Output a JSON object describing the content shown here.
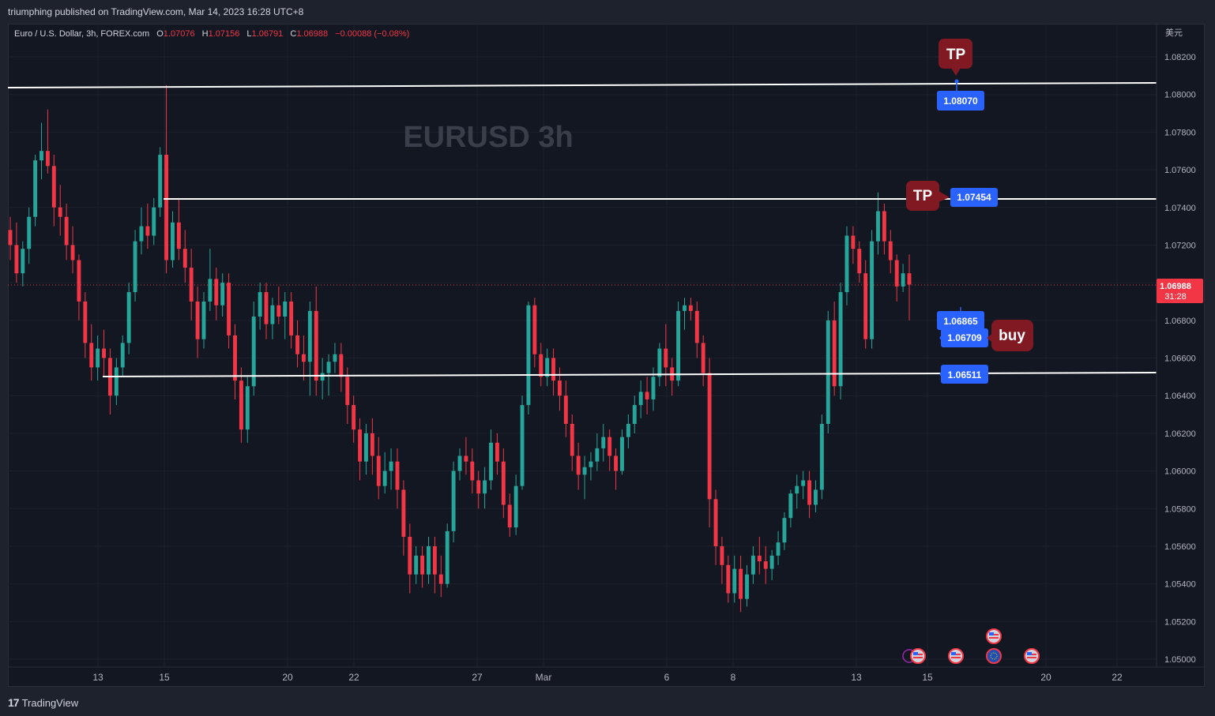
{
  "header": {
    "published": "triumphing published on TradingView.com, Mar 14, 2023 16:28 UTC+8"
  },
  "legend": {
    "symbol": "Euro / U.S. Dollar, 3h, FOREX.com",
    "o_label": "O",
    "o_value": "1.07076",
    "h_label": "H",
    "h_value": "1.07156",
    "l_label": "L",
    "l_value": "1.06791",
    "c_label": "C",
    "c_value": "1.06988",
    "change": "−0.00088 (−0.08%)"
  },
  "watermark": "EURUSD  3h",
  "currency": "美元",
  "footer": {
    "brand": "TradingView"
  },
  "colors": {
    "up": "#26a69a",
    "down": "#f23645",
    "background": "#131722",
    "grid": "#1f2330",
    "label": "#2962ff",
    "tag": "#801922"
  },
  "chart_data": {
    "type": "candlestick",
    "symbol": "EURUSD",
    "timeframe": "3h",
    "ylim": [
      1.0492,
      1.0835
    ],
    "y_ticks": [
      "1.08200",
      "1.08000",
      "1.07800",
      "1.07600",
      "1.07400",
      "1.07200",
      "1.07000",
      "1.06800",
      "1.06600",
      "1.06400",
      "1.06200",
      "1.06000",
      "1.05800",
      "1.05600",
      "1.05400",
      "1.05200",
      "1.05000"
    ],
    "x_ticks": [
      "13",
      "15",
      "20",
      "22",
      "27",
      "Mar",
      "6",
      "8",
      "13",
      "15",
      "20",
      "22"
    ],
    "last_price": {
      "value": "1.06988",
      "countdown": "31:28"
    },
    "levels": [
      {
        "name": "top-resistance",
        "label": "1.08070",
        "tag": "TP"
      },
      {
        "name": "mid-resistance",
        "label": "1.07454",
        "tag": "TP"
      },
      {
        "name": "entry-1",
        "label": "1.06865",
        "tag": "buy"
      },
      {
        "name": "entry-2",
        "label": "1.06709"
      },
      {
        "name": "support",
        "label": "1.06511"
      }
    ],
    "candles": [
      [
        1.0728,
        1.0735,
        1.0712,
        1.072
      ],
      [
        1.072,
        1.0732,
        1.07,
        1.0705
      ],
      [
        1.0705,
        1.0722,
        1.0698,
        1.0718
      ],
      [
        1.0718,
        1.074,
        1.071,
        1.0735
      ],
      [
        1.0735,
        1.0768,
        1.073,
        1.0765
      ],
      [
        1.0765,
        1.0785,
        1.0755,
        1.077
      ],
      [
        1.077,
        1.0792,
        1.0758,
        1.0762
      ],
      [
        1.0762,
        1.0768,
        1.073,
        1.074
      ],
      [
        1.074,
        1.0752,
        1.0725,
        1.0735
      ],
      [
        1.0735,
        1.0742,
        1.0712,
        1.072
      ],
      [
        1.072,
        1.073,
        1.0705,
        1.0712
      ],
      [
        1.0712,
        1.0715,
        1.068,
        1.069
      ],
      [
        1.069,
        1.0695,
        1.066,
        1.0668
      ],
      [
        1.0668,
        1.0678,
        1.0648,
        1.0655
      ],
      [
        1.0655,
        1.0672,
        1.0648,
        1.0665
      ],
      [
        1.0665,
        1.0675,
        1.065,
        1.066
      ],
      [
        1.066,
        1.0665,
        1.063,
        1.064
      ],
      [
        1.064,
        1.066,
        1.0635,
        1.0655
      ],
      [
        1.0655,
        1.0672,
        1.065,
        1.0668
      ],
      [
        1.0668,
        1.07,
        1.0662,
        1.0695
      ],
      [
        1.0695,
        1.0728,
        1.069,
        1.0722
      ],
      [
        1.0722,
        1.074,
        1.0715,
        1.073
      ],
      [
        1.073,
        1.0742,
        1.0718,
        1.0725
      ],
      [
        1.0725,
        1.0745,
        1.072,
        1.074
      ],
      [
        1.074,
        1.0772,
        1.0735,
        1.0768
      ],
      [
        1.0768,
        1.0805,
        1.0705,
        1.0712
      ],
      [
        1.0712,
        1.0738,
        1.0708,
        1.0732
      ],
      [
        1.0732,
        1.0745,
        1.0712,
        1.0718
      ],
      [
        1.0718,
        1.0728,
        1.07,
        1.0708
      ],
      [
        1.0708,
        1.0718,
        1.068,
        1.069
      ],
      [
        1.069,
        1.0698,
        1.066,
        1.067
      ],
      [
        1.067,
        1.0695,
        1.0665,
        1.069
      ],
      [
        1.069,
        1.0718,
        1.0685,
        1.0702
      ],
      [
        1.0702,
        1.0708,
        1.068,
        1.0688
      ],
      [
        1.0688,
        1.0705,
        1.0682,
        1.07
      ],
      [
        1.07,
        1.0705,
        1.0665,
        1.0672
      ],
      [
        1.0672,
        1.0678,
        1.0638,
        1.0648
      ],
      [
        1.0648,
        1.0655,
        1.0615,
        1.0622
      ],
      [
        1.0622,
        1.065,
        1.0615,
        1.0645
      ],
      [
        1.0645,
        1.069,
        1.064,
        1.0682
      ],
      [
        1.0682,
        1.07,
        1.0675,
        1.0695
      ],
      [
        1.0695,
        1.07,
        1.067,
        1.0678
      ],
      [
        1.0678,
        1.0692,
        1.067,
        1.0688
      ],
      [
        1.0688,
        1.0698,
        1.0678,
        1.0682
      ],
      [
        1.0682,
        1.0695,
        1.067,
        1.069
      ],
      [
        1.069,
        1.0695,
        1.0665,
        1.0672
      ],
      [
        1.0672,
        1.068,
        1.0655,
        1.0662
      ],
      [
        1.0662,
        1.0672,
        1.0648,
        1.0658
      ],
      [
        1.0658,
        1.069,
        1.064,
        1.0685
      ],
      [
        1.0685,
        1.0698,
        1.064,
        1.0648
      ],
      [
        1.0648,
        1.066,
        1.0638,
        1.0652
      ],
      [
        1.0652,
        1.0662,
        1.064,
        1.0658
      ],
      [
        1.0658,
        1.0668,
        1.0652,
        1.0662
      ],
      [
        1.0662,
        1.0668,
        1.0642,
        1.065
      ],
      [
        1.065,
        1.0655,
        1.0625,
        1.0635
      ],
      [
        1.0635,
        1.064,
        1.0615,
        1.0622
      ],
      [
        1.0622,
        1.0628,
        1.0595,
        1.0605
      ],
      [
        1.0605,
        1.0625,
        1.0598,
        1.062
      ],
      [
        1.062,
        1.0628,
        1.0598,
        1.0608
      ],
      [
        1.0608,
        1.0618,
        1.0585,
        1.0592
      ],
      [
        1.0592,
        1.061,
        1.0588,
        1.06
      ],
      [
        1.06,
        1.0612,
        1.059,
        1.0605
      ],
      [
        1.0605,
        1.0612,
        1.058,
        1.059
      ],
      [
        1.059,
        1.0595,
        1.0555,
        1.0565
      ],
      [
        1.0565,
        1.0572,
        1.0535,
        1.0545
      ],
      [
        1.0545,
        1.056,
        1.054,
        1.0555
      ],
      [
        1.0555,
        1.056,
        1.0538,
        1.0545
      ],
      [
        1.0545,
        1.0565,
        1.054,
        1.056
      ],
      [
        1.056,
        1.0565,
        1.0535,
        1.0545
      ],
      [
        1.0545,
        1.0555,
        1.0533,
        1.054
      ],
      [
        1.054,
        1.0572,
        1.0538,
        1.0568
      ],
      [
        1.0568,
        1.0605,
        1.0562,
        1.06
      ],
      [
        1.06,
        1.0612,
        1.0595,
        1.0608
      ],
      [
        1.0608,
        1.0618,
        1.0598,
        1.0605
      ],
      [
        1.0605,
        1.0612,
        1.0588,
        1.0595
      ],
      [
        1.0595,
        1.06,
        1.058,
        1.0588
      ],
      [
        1.0588,
        1.0602,
        1.058,
        1.0595
      ],
      [
        1.0595,
        1.0622,
        1.059,
        1.0615
      ],
      [
        1.0615,
        1.062,
        1.0598,
        1.0605
      ],
      [
        1.0605,
        1.0612,
        1.0575,
        1.0582
      ],
      [
        1.0582,
        1.0588,
        1.0565,
        1.057
      ],
      [
        1.057,
        1.0598,
        1.0566,
        1.0592
      ],
      [
        1.0592,
        1.064,
        1.059,
        1.0635
      ],
      [
        1.0635,
        1.069,
        1.063,
        1.0688
      ],
      [
        1.0688,
        1.0692,
        1.0655,
        1.0662
      ],
      [
        1.0662,
        1.0668,
        1.0645,
        1.065
      ],
      [
        1.065,
        1.0665,
        1.0645,
        1.066
      ],
      [
        1.066,
        1.0665,
        1.064,
        1.0648
      ],
      [
        1.0648,
        1.0655,
        1.0632,
        1.064
      ],
      [
        1.064,
        1.0648,
        1.0618,
        1.0625
      ],
      [
        1.0625,
        1.063,
        1.06,
        1.0608
      ],
      [
        1.0608,
        1.0615,
        1.059,
        1.0598
      ],
      [
        1.0598,
        1.0608,
        1.0585,
        1.0602
      ],
      [
        1.0602,
        1.061,
        1.0595,
        1.0605
      ],
      [
        1.0605,
        1.062,
        1.06,
        1.0612
      ],
      [
        1.0612,
        1.0625,
        1.0605,
        1.0618
      ],
      [
        1.0618,
        1.0622,
        1.06,
        1.0608
      ],
      [
        1.0608,
        1.0612,
        1.059,
        1.06
      ],
      [
        1.06,
        1.0622,
        1.0598,
        1.0618
      ],
      [
        1.0618,
        1.063,
        1.0612,
        1.0625
      ],
      [
        1.0625,
        1.064,
        1.062,
        1.0635
      ],
      [
        1.0635,
        1.0648,
        1.0628,
        1.0642
      ],
      [
        1.0642,
        1.065,
        1.063,
        1.0638
      ],
      [
        1.0638,
        1.0655,
        1.0632,
        1.065
      ],
      [
        1.065,
        1.0668,
        1.0645,
        1.0665
      ],
      [
        1.0665,
        1.0678,
        1.0645,
        1.0655
      ],
      [
        1.0655,
        1.066,
        1.064,
        1.0648
      ],
      [
        1.0648,
        1.069,
        1.0645,
        1.0685
      ],
      [
        1.0685,
        1.0692,
        1.0675,
        1.0688
      ],
      [
        1.0688,
        1.0692,
        1.068,
        1.0685
      ],
      [
        1.0685,
        1.069,
        1.066,
        1.0668
      ],
      [
        1.0668,
        1.0672,
        1.0645,
        1.0652
      ],
      [
        1.0652,
        1.066,
        1.057,
        1.0585
      ],
      [
        1.0585,
        1.059,
        1.055,
        1.056
      ],
      [
        1.056,
        1.0565,
        1.054,
        1.055
      ],
      [
        1.055,
        1.0555,
        1.053,
        1.0535
      ],
      [
        1.0535,
        1.0555,
        1.053,
        1.0548
      ],
      [
        1.0548,
        1.0555,
        1.0525,
        1.0532
      ],
      [
        1.0532,
        1.055,
        1.0528,
        1.0545
      ],
      [
        1.0545,
        1.056,
        1.054,
        1.0555
      ],
      [
        1.0555,
        1.0565,
        1.0545,
        1.0552
      ],
      [
        1.0552,
        1.056,
        1.054,
        1.0548
      ],
      [
        1.0548,
        1.0558,
        1.0542,
        1.0555
      ],
      [
        1.0555,
        1.0568,
        1.055,
        1.0562
      ],
      [
        1.0562,
        1.0578,
        1.0558,
        1.0575
      ],
      [
        1.0575,
        1.059,
        1.057,
        1.0588
      ],
      [
        1.0588,
        1.0598,
        1.058,
        1.0592
      ],
      [
        1.0592,
        1.06,
        1.0585,
        1.0595
      ],
      [
        1.0595,
        1.06,
        1.0575,
        1.0582
      ],
      [
        1.0582,
        1.0595,
        1.0578,
        1.059
      ],
      [
        1.059,
        1.063,
        1.0585,
        1.0625
      ],
      [
        1.0625,
        1.0685,
        1.062,
        1.068
      ],
      [
        1.068,
        1.069,
        1.064,
        1.0645
      ],
      [
        1.0645,
        1.07,
        1.0638,
        1.0695
      ],
      [
        1.0695,
        1.073,
        1.0688,
        1.0725
      ],
      [
        1.0725,
        1.073,
        1.071,
        1.0718
      ],
      [
        1.0718,
        1.0722,
        1.07,
        1.0705
      ],
      [
        1.0705,
        1.0712,
        1.0665,
        1.067
      ],
      [
        1.067,
        1.0728,
        1.0665,
        1.0722
      ],
      [
        1.0722,
        1.0748,
        1.0715,
        1.0738
      ],
      [
        1.0738,
        1.0742,
        1.0715,
        1.0722
      ],
      [
        1.0722,
        1.0728,
        1.0705,
        1.0712
      ],
      [
        1.0712,
        1.0715,
        1.069,
        1.0698
      ],
      [
        1.0698,
        1.071,
        1.0695,
        1.0705
      ],
      [
        1.0705,
        1.0715,
        1.068,
        1.0699
      ]
    ]
  }
}
